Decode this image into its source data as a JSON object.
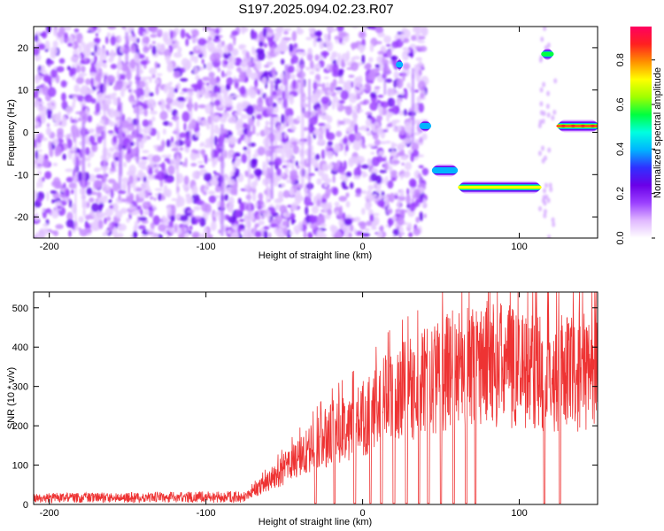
{
  "title": "S197.2025.094.02.23.R07",
  "chart_data": [
    {
      "type": "heatmap",
      "xlabel": "Height of straight line (km)",
      "ylabel": "Frequency (Hz)",
      "xlim": [
        -210,
        150
      ],
      "ylim": [
        -25,
        25
      ],
      "xticks": [
        -200,
        -100,
        0,
        100
      ],
      "yticks": [
        -20,
        -10,
        0,
        10,
        20
      ],
      "colorbar": {
        "label": "Normalized spectral amplitude",
        "range": [
          0,
          0.95
        ],
        "ticks": [
          0.0,
          0.2,
          0.4,
          0.6,
          0.8
        ],
        "colors": [
          "#ffffff",
          "#e0b8ff",
          "#9b40ff",
          "#6a00e8",
          "#3030ff",
          "#00b4ff",
          "#00ffe0",
          "#00ff40",
          "#a0ff00",
          "#ffff00",
          "#ff9000",
          "#ff2020",
          "#ff0060"
        ]
      },
      "features": [
        {
          "x": [
            37,
            43
          ],
          "y": 1.5,
          "amplitude": 0.5
        },
        {
          "x": [
            45,
            60
          ],
          "y": -9,
          "amplitude": 0.45
        },
        {
          "x": [
            62,
            113
          ],
          "y": -13,
          "amplitude": 0.75
        },
        {
          "x": [
            22,
            25
          ],
          "y": 16,
          "amplitude": 0.4
        },
        {
          "x": [
            115,
            121
          ],
          "y": 18.5,
          "amplitude": 0.6
        },
        {
          "x": [
            125,
            150
          ],
          "y": 1.5,
          "amplitude": 0.9
        }
      ]
    },
    {
      "type": "line",
      "xlabel": "Height of straight line (km)",
      "ylabel": "SNR (10 * v/v)",
      "xlim": [
        -210,
        150
      ],
      "ylim": [
        0,
        540
      ],
      "xticks": [
        -200,
        -100,
        0,
        100
      ],
      "yticks": [
        0,
        100,
        200,
        300,
        400,
        500
      ],
      "color": "#ee3333",
      "envelope": [
        {
          "x": -210,
          "y": 15
        },
        {
          "x": -75,
          "y": 20
        },
        {
          "x": -60,
          "y": 60
        },
        {
          "x": -40,
          "y": 120
        },
        {
          "x": -20,
          "y": 180
        },
        {
          "x": 0,
          "y": 220
        },
        {
          "x": 20,
          "y": 280
        },
        {
          "x": 40,
          "y": 310
        },
        {
          "x": 60,
          "y": 350
        },
        {
          "x": 80,
          "y": 360
        },
        {
          "x": 100,
          "y": 350
        },
        {
          "x": 120,
          "y": 330
        },
        {
          "x": 150,
          "y": 340
        }
      ],
      "dropouts": [
        -30,
        -18,
        -5,
        5,
        12,
        20,
        28,
        36,
        42,
        50,
        58,
        66,
        72,
        116,
        126
      ]
    }
  ]
}
